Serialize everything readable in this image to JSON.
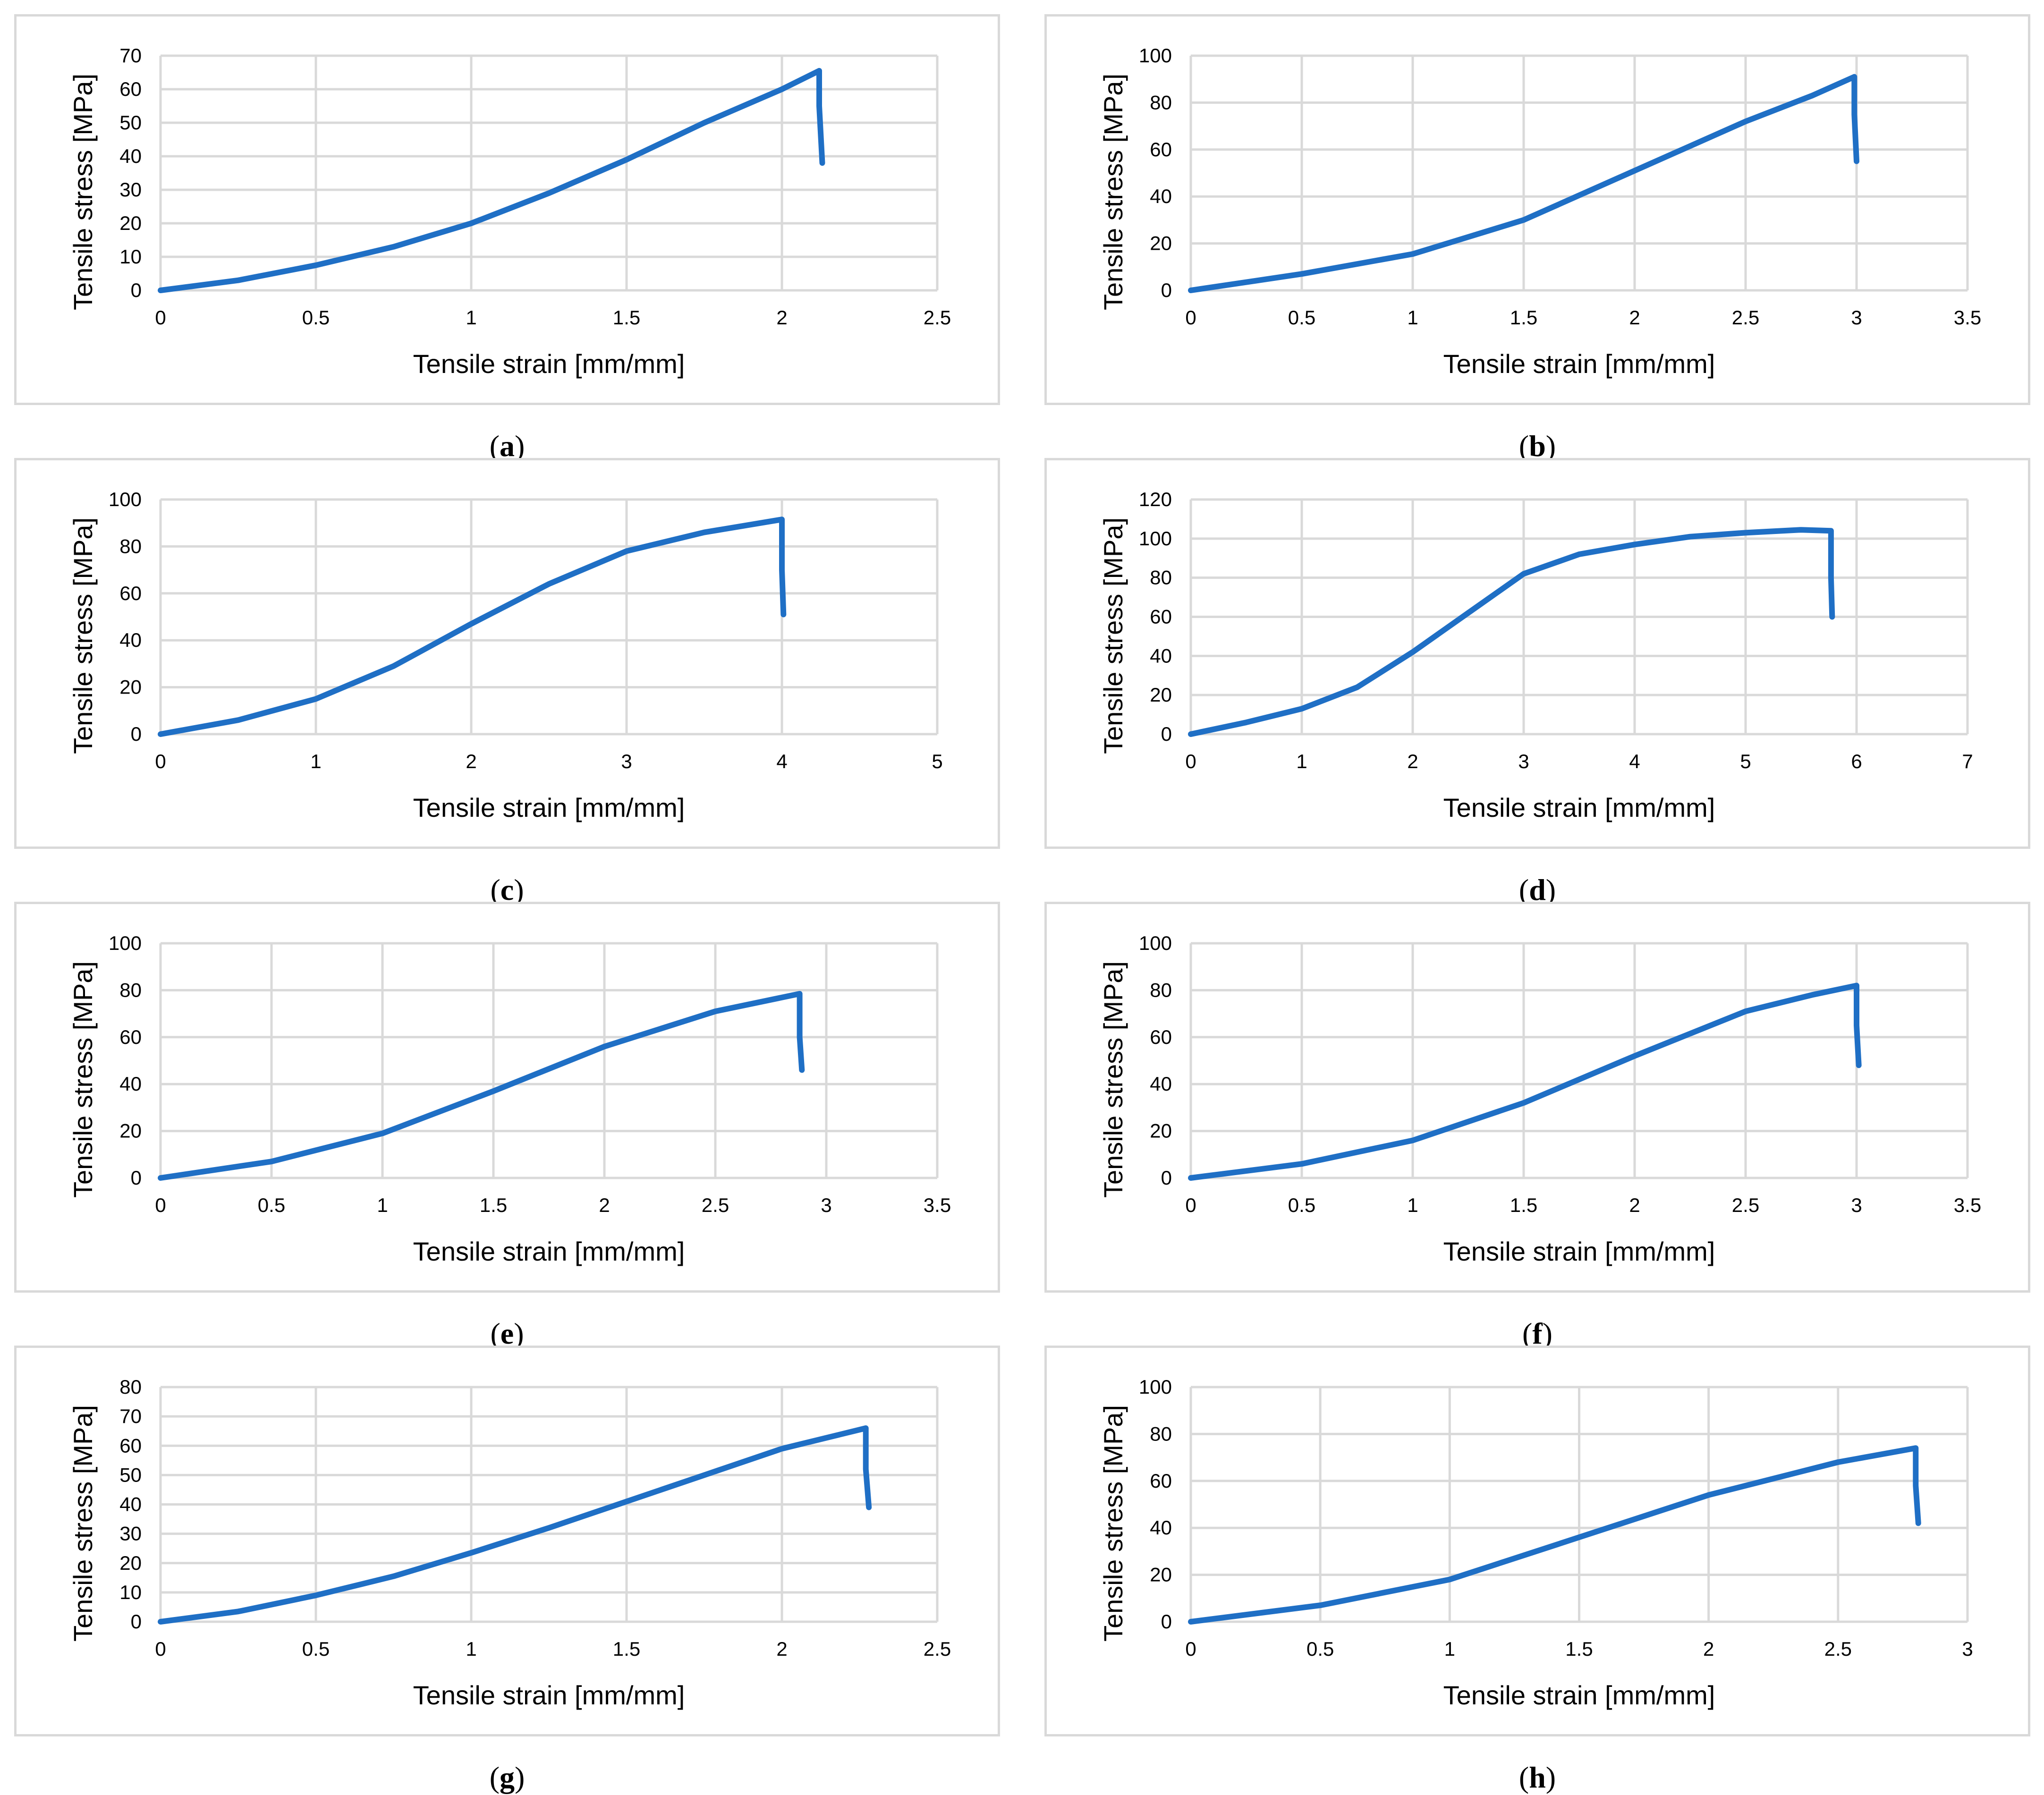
{
  "figure": {
    "line_color": "#1f6fc5",
    "grid_color": "#d9d9d9",
    "border_color": "#d9d9d9"
  },
  "chart_data": [
    {
      "id": "a",
      "caption_letter": "a",
      "type": "line",
      "xlabel": "Tensile strain [mm/mm]",
      "ylabel": "Tensile stress [MPa]",
      "xlim": [
        0,
        2.5
      ],
      "ylim": [
        0,
        70
      ],
      "xticks": [
        "0",
        "0.5",
        "1",
        "1.5",
        "2",
        "2.5"
      ],
      "yticks": [
        "0",
        "10",
        "20",
        "30",
        "40",
        "50",
        "60",
        "70"
      ],
      "grid": true,
      "series": [
        {
          "name": "a",
          "x": [
            0,
            0.25,
            0.5,
            0.75,
            1.0,
            1.25,
            1.5,
            1.75,
            2.0,
            2.12,
            2.12,
            2.13
          ],
          "y": [
            0,
            3,
            7.5,
            13,
            20,
            29,
            39,
            50,
            60,
            65.5,
            55,
            38
          ]
        }
      ]
    },
    {
      "id": "b",
      "caption_letter": "b",
      "type": "line",
      "xlabel": "Tensile strain [mm/mm]",
      "ylabel": "Tensile stress [MPa]",
      "xlim": [
        0,
        3.5
      ],
      "ylim": [
        0,
        100
      ],
      "xticks": [
        "0",
        "0.5",
        "1",
        "1.5",
        "2",
        "2.5",
        "3",
        "3.5"
      ],
      "yticks": [
        "0",
        "20",
        "40",
        "60",
        "80",
        "100"
      ],
      "grid": true,
      "series": [
        {
          "name": "b",
          "x": [
            0,
            0.5,
            1.0,
            1.5,
            2.0,
            2.5,
            2.8,
            2.99,
            2.99,
            3.0
          ],
          "y": [
            0,
            7,
            15.5,
            30,
            51,
            72,
            83,
            91,
            75,
            55
          ]
        }
      ]
    },
    {
      "id": "c",
      "caption_letter": "c",
      "type": "line",
      "xlabel": "Tensile strain [mm/mm]",
      "ylabel": "Tensile stress [MPa]",
      "xlim": [
        0,
        5
      ],
      "ylim": [
        0,
        100
      ],
      "xticks": [
        "0",
        "1",
        "2",
        "3",
        "4",
        "5"
      ],
      "yticks": [
        "0",
        "20",
        "40",
        "60",
        "80",
        "100"
      ],
      "grid": true,
      "series": [
        {
          "name": "c",
          "x": [
            0,
            0.5,
            1.0,
            1.5,
            2.0,
            2.5,
            3.0,
            3.5,
            4.0,
            4.0,
            4.01
          ],
          "y": [
            0,
            6,
            15,
            29,
            47,
            64,
            78,
            86,
            91.5,
            70,
            51
          ]
        }
      ]
    },
    {
      "id": "d",
      "caption_letter": "d",
      "type": "line",
      "xlabel": "Tensile strain [mm/mm]",
      "ylabel": "Tensile stress [MPa]",
      "xlim": [
        0,
        7
      ],
      "ylim": [
        0,
        120
      ],
      "xticks": [
        "0",
        "1",
        "2",
        "3",
        "4",
        "5",
        "6",
        "7"
      ],
      "yticks": [
        "0",
        "20",
        "40",
        "60",
        "80",
        "100",
        "120"
      ],
      "grid": true,
      "series": [
        {
          "name": "d",
          "x": [
            0,
            0.5,
            1.0,
            1.5,
            2.0,
            2.5,
            3.0,
            3.5,
            4.0,
            4.5,
            5.0,
            5.5,
            5.77,
            5.77,
            5.78
          ],
          "y": [
            0,
            6,
            13,
            24,
            42,
            62,
            82,
            92,
            97,
            101,
            103,
            104.5,
            104,
            80,
            60
          ]
        }
      ]
    },
    {
      "id": "e",
      "caption_letter": "e",
      "type": "line",
      "xlabel": "Tensile strain [mm/mm]",
      "ylabel": "Tensile stress [MPa]",
      "xlim": [
        0,
        3.5
      ],
      "ylim": [
        0,
        100
      ],
      "xticks": [
        "0",
        "0.5",
        "1",
        "1.5",
        "2",
        "2.5",
        "3",
        "3.5"
      ],
      "yticks": [
        "0",
        "20",
        "40",
        "60",
        "80",
        "100"
      ],
      "grid": true,
      "series": [
        {
          "name": "e",
          "x": [
            0,
            0.5,
            1.0,
            1.5,
            2.0,
            2.5,
            2.88,
            2.88,
            2.89
          ],
          "y": [
            0,
            7,
            19,
            37,
            56,
            71,
            78.5,
            60,
            46
          ]
        }
      ]
    },
    {
      "id": "f",
      "caption_letter": "f",
      "type": "line",
      "xlabel": "Tensile strain [mm/mm]",
      "ylabel": "Tensile stress [MPa]",
      "xlim": [
        0,
        3.5
      ],
      "ylim": [
        0,
        100
      ],
      "xticks": [
        "0",
        "0.5",
        "1",
        "1.5",
        "2",
        "2.5",
        "3",
        "3.5"
      ],
      "yticks": [
        "0",
        "20",
        "40",
        "60",
        "80",
        "100"
      ],
      "grid": true,
      "series": [
        {
          "name": "f",
          "x": [
            0,
            0.5,
            1.0,
            1.5,
            2.0,
            2.5,
            2.8,
            3.0,
            3.0,
            3.01
          ],
          "y": [
            0,
            6,
            16,
            32,
            52,
            71,
            78,
            82,
            65,
            48
          ]
        }
      ]
    },
    {
      "id": "g",
      "caption_letter": "g",
      "type": "line",
      "xlabel": "Tensile strain [mm/mm]",
      "ylabel": "Tensile stress [MPa]",
      "xlim": [
        0,
        2.5
      ],
      "ylim": [
        0,
        80
      ],
      "xticks": [
        "0",
        "0.5",
        "1",
        "1.5",
        "2",
        "2.5"
      ],
      "yticks": [
        "0",
        "10",
        "20",
        "30",
        "40",
        "50",
        "60",
        "70",
        "80"
      ],
      "grid": true,
      "series": [
        {
          "name": "g",
          "x": [
            0,
            0.25,
            0.5,
            0.75,
            1.0,
            1.25,
            1.5,
            1.75,
            2.0,
            2.27,
            2.27,
            2.28
          ],
          "y": [
            0,
            3.5,
            9,
            15.5,
            23.5,
            32,
            41,
            50,
            59,
            66,
            52,
            39
          ]
        }
      ]
    },
    {
      "id": "h",
      "caption_letter": "h",
      "type": "line",
      "xlabel": "Tensile strain [mm/mm]",
      "ylabel": "Tensile stress [MPa]",
      "xlim": [
        0,
        3
      ],
      "ylim": [
        0,
        100
      ],
      "xticks": [
        "0",
        "0.5",
        "1",
        "1.5",
        "2",
        "2.5",
        "3"
      ],
      "yticks": [
        "0",
        "20",
        "40",
        "60",
        "80",
        "100"
      ],
      "grid": true,
      "series": [
        {
          "name": "h",
          "x": [
            0,
            0.5,
            1.0,
            1.5,
            2.0,
            2.5,
            2.8,
            2.8,
            2.81
          ],
          "y": [
            0,
            7,
            18,
            36,
            54,
            68,
            74,
            58,
            42
          ]
        }
      ]
    }
  ]
}
